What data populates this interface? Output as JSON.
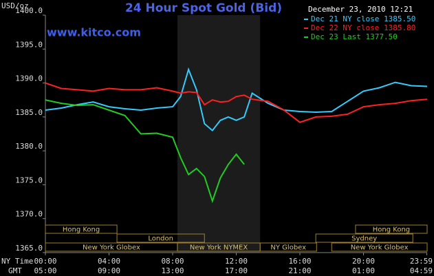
{
  "chart_data": {
    "type": "line",
    "title": "24 Hour Spot Gold (Bid)",
    "watermark": "www.kitco.com",
    "timestamp": "December 23, 2010 12:21",
    "y_label": "USD/oz",
    "x_row_labels": [
      "NY Time",
      "GMT"
    ],
    "x": [
      0,
      1,
      2,
      3,
      4,
      5,
      6,
      7,
      8,
      8.5,
      9,
      9.5,
      10,
      10.5,
      11,
      11.5,
      12,
      12.5,
      13,
      14,
      15,
      16,
      17,
      18,
      19,
      20,
      21,
      22,
      23,
      24
    ],
    "series": [
      {
        "name": "Dec 21 NY close 1385.50",
        "color": "#33ccff",
        "values": [
          1386,
          1386.3,
          1386.8,
          1387.2,
          1386.5,
          1386.2,
          1386,
          1386.3,
          1386.5,
          1388,
          1392,
          1389,
          1384,
          1383,
          1384.5,
          1385,
          1384.5,
          1385,
          1388.5,
          1387,
          1386,
          1385.8,
          1385.7,
          1385.8,
          1387.3,
          1388.8,
          1389.3,
          1390.1,
          1389.6,
          1389.5
        ]
      },
      {
        "name": "Dec 22 NY close 1385.80",
        "color": "#ff2020",
        "values": [
          1390,
          1389.2,
          1389,
          1388.8,
          1389.2,
          1389,
          1389,
          1389.3,
          1388.8,
          1388.5,
          1388.7,
          1388.6,
          1386.8,
          1387.5,
          1387.2,
          1387.3,
          1388,
          1388.2,
          1387.6,
          1387.3,
          1386,
          1384.2,
          1385,
          1385.1,
          1385.4,
          1386.5,
          1386.8,
          1387,
          1387.4,
          1387.6
        ]
      },
      {
        "name": "Dec 23 Last 1377.50",
        "color": "#22cc22",
        "values": [
          1387.5,
          1387,
          1386.7,
          1386.8,
          1386,
          1385.2,
          1382.5,
          1382.6,
          1382,
          1379,
          1376.5,
          1377.4,
          1376.2,
          1372.6,
          1376,
          1378,
          1379.5,
          1378,
          null,
          null,
          null,
          null,
          null,
          null,
          null,
          null,
          null,
          null,
          null,
          null
        ]
      }
    ],
    "xlim": [
      0,
      24
    ],
    "xticks": [
      {
        "value": 0,
        "label": "00:00"
      },
      {
        "value": 4,
        "label": "04:00"
      },
      {
        "value": 8,
        "label": "08:00"
      },
      {
        "value": 12,
        "label": "12:00"
      },
      {
        "value": 16,
        "label": "16:00"
      },
      {
        "value": 20,
        "label": "20:00"
      },
      {
        "value": 23.983,
        "label": "23:59"
      }
    ],
    "gmt_labels": [
      "05:00",
      "09:00",
      "13:00",
      "17:00",
      "21:00",
      "01:00",
      "04:59"
    ],
    "ylim": [
      1365,
      1400
    ],
    "yticks": [
      {
        "value": 1365,
        "label": "1365.0"
      },
      {
        "value": 1370,
        "label": "1370.0"
      },
      {
        "value": 1375,
        "label": "1375.0"
      },
      {
        "value": 1380,
        "label": "1380.0"
      },
      {
        "value": 1385,
        "label": "1385.0"
      },
      {
        "value": 1390,
        "label": "1390.0"
      },
      {
        "value": 1395,
        "label": "1395.0"
      },
      {
        "value": 1400,
        "label": "1400.0"
      }
    ],
    "sessions": [
      [
        {
          "name": "Hong Kong",
          "start": 0,
          "end": 4.5
        },
        {
          "name": "Hong Kong",
          "start": 19.5,
          "end": 24
        }
      ],
      [
        {
          "name": "London",
          "start": 4.5,
          "end": 10
        },
        {
          "name": "Sydney",
          "start": 17,
          "end": 23.1
        }
      ],
      [
        {
          "name": "New York Globex",
          "start": 0,
          "end": 8.3
        },
        {
          "name": "New York NYMEX",
          "start": 8.3,
          "end": 13.5
        },
        {
          "name": "NY Globex",
          "start": 13.5,
          "end": 17.05
        },
        {
          "name": "New York Globex",
          "start": 18,
          "end": 24
        }
      ]
    ]
  }
}
